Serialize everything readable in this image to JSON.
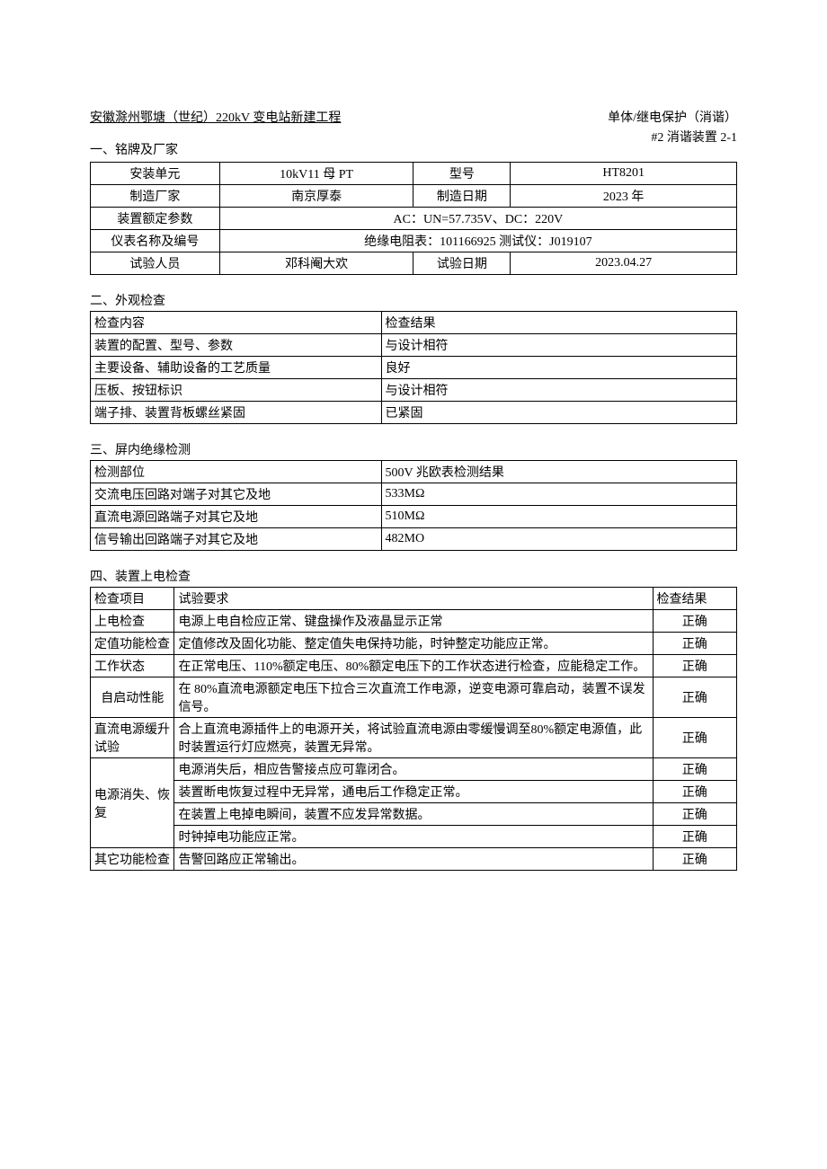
{
  "header": {
    "left": "安徽滁州鄂塘（世纪）220kV 变电站新建工程",
    "right": "单体/继电保护（消谐）"
  },
  "section1": {
    "title": "一、铭牌及厂家",
    "title_right": "#2 消谐装置 2-1",
    "rows": [
      {
        "k1": "安装单元",
        "v1": "10kV11 母 PT",
        "k2": "型号",
        "v2": "HT8201"
      },
      {
        "k1": "制造厂家",
        "v1": "南京厚泰",
        "k2": "制造日期",
        "v2": "2023 年"
      }
    ],
    "param_label": "装置额定参数",
    "param_value": "AC：UN=57.735V、DC：220V",
    "meter_label": "仪表名称及编号",
    "meter_value": "绝缘电阻表：101166925 测试仪：J019107",
    "tester_row": {
      "k1": "试验人员",
      "v1": "邓科阉大欢",
      "k2": "试验日期",
      "v2": "2023.04.27"
    }
  },
  "section2": {
    "title": "二、外观检查",
    "header": [
      "检查内容",
      "检查结果"
    ],
    "rows": [
      [
        "装置的配置、型号、参数",
        "与设计相符"
      ],
      [
        "主要设备、辅助设备的工艺质量",
        "良好"
      ],
      [
        "压板、按钮标识",
        "与设计相符"
      ],
      [
        "端子排、装置背板螺丝紧固",
        "已紧固"
      ]
    ]
  },
  "section3": {
    "title": "三、屏内绝缘检测",
    "header": [
      "检测部位",
      "500V 兆欧表检测结果"
    ],
    "rows": [
      [
        "交流电压回路对端子对其它及地",
        "533MΩ"
      ],
      [
        "直流电源回路端子对其它及地",
        "510MΩ"
      ],
      [
        "信号输出回路端子对其它及地",
        "482MO"
      ]
    ]
  },
  "section4": {
    "title": "四、装置上电检查",
    "header": [
      "检查项目",
      "试验要求",
      "检查结果"
    ],
    "rows": [
      {
        "item": "上电检查",
        "req": "电源上电自检应正常、键盘操作及液晶显示正常",
        "res": "正确"
      },
      {
        "item": "定值功能检查",
        "req": "定值修改及固化功能、整定值失电保持功能，时钟整定功能应正常。",
        "res": "正确"
      },
      {
        "item": "工作状态",
        "req": "在正常电压、110%额定电压、80%额定电压下的工作状态进行检查，应能稳定工作。",
        "res": "正确"
      },
      {
        "item": "自启动性能",
        "req": "在 80%直流电源额定电压下拉合三次直流工作电源，逆变电源可靠启动，装置不误发信号。",
        "res": "正确"
      },
      {
        "item": "直流电源缓升试验",
        "req": "合上直流电源插件上的电源开关，将试验直流电源由零缓慢调至80%额定电源值，此时装置运行灯应燃亮，装置无异常。",
        "res": "正确"
      }
    ],
    "merged_item": "电源消失、恢复",
    "merged_rows": [
      {
        "req": "电源消失后，相应告警接点应可靠闭合。",
        "res": "正确"
      },
      {
        "req": "装置断电恢复过程中无异常，通电后工作稳定正常。",
        "res": "正确"
      },
      {
        "req": "在装置上电掉电瞬间，装置不应发异常数据。",
        "res": "正确"
      },
      {
        "req": "时钟掉电功能应正常。",
        "res": "正确"
      }
    ],
    "last_row": {
      "item": "其它功能检查",
      "req": "告警回路应正常输出。",
      "res": "正确"
    }
  }
}
